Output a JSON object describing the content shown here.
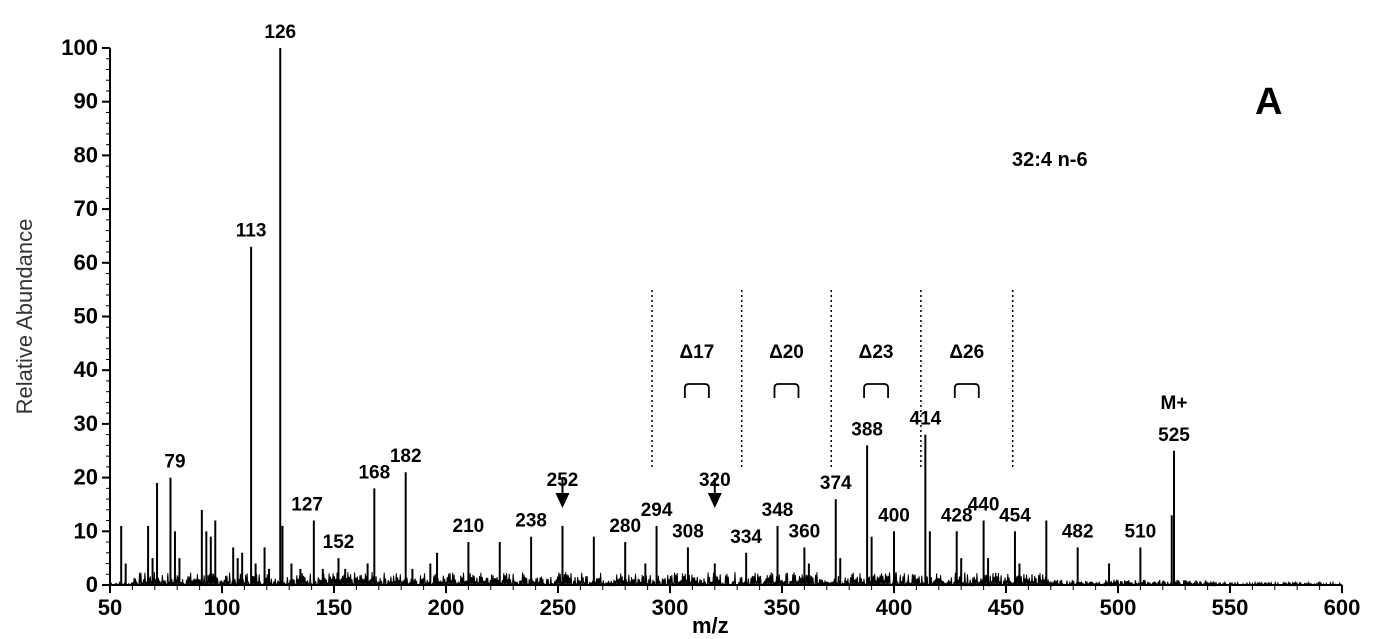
{
  "chart_data": {
    "type": "bar",
    "title": "",
    "xlabel": "m/z",
    "ylabel": "Relative Abundance",
    "xlim": [
      50,
      600
    ],
    "ylim": [
      0,
      100
    ],
    "x_ticks": [
      "50",
      "100",
      "150",
      "200",
      "250",
      "300",
      "350",
      "400",
      "450",
      "500",
      "550",
      "600"
    ],
    "y_ticks": [
      "0",
      "10",
      "20",
      "30",
      "40",
      "50",
      "60",
      "70",
      "80",
      "90",
      "100"
    ],
    "panel_label": "A",
    "compound": "32:4 n-6",
    "molecular_ion_label": "M+",
    "peaks": [
      {
        "x": 55,
        "y": 11
      },
      {
        "x": 57,
        "y": 4
      },
      {
        "x": 67,
        "y": 11
      },
      {
        "x": 69,
        "y": 5
      },
      {
        "x": 71,
        "y": 19
      },
      {
        "x": 77,
        "y": 20
      },
      {
        "x": 79,
        "y": 10
      },
      {
        "x": 81,
        "y": 5
      },
      {
        "x": 91,
        "y": 14
      },
      {
        "x": 93,
        "y": 10
      },
      {
        "x": 95,
        "y": 9
      },
      {
        "x": 97,
        "y": 12
      },
      {
        "x": 105,
        "y": 7
      },
      {
        "x": 107,
        "y": 5
      },
      {
        "x": 109,
        "y": 6
      },
      {
        "x": 113,
        "y": 63
      },
      {
        "x": 115,
        "y": 4
      },
      {
        "x": 119,
        "y": 7
      },
      {
        "x": 121,
        "y": 3
      },
      {
        "x": 126,
        "y": 100
      },
      {
        "x": 127,
        "y": 11
      },
      {
        "x": 131,
        "y": 4
      },
      {
        "x": 135,
        "y": 3
      },
      {
        "x": 141,
        "y": 12
      },
      {
        "x": 145,
        "y": 3
      },
      {
        "x": 152,
        "y": 5
      },
      {
        "x": 155,
        "y": 3
      },
      {
        "x": 165,
        "y": 4
      },
      {
        "x": 168,
        "y": 18
      },
      {
        "x": 182,
        "y": 21
      },
      {
        "x": 185,
        "y": 3
      },
      {
        "x": 193,
        "y": 4
      },
      {
        "x": 196,
        "y": 6
      },
      {
        "x": 210,
        "y": 8
      },
      {
        "x": 224,
        "y": 8
      },
      {
        "x": 238,
        "y": 9
      },
      {
        "x": 252,
        "y": 11
      },
      {
        "x": 266,
        "y": 9
      },
      {
        "x": 280,
        "y": 8
      },
      {
        "x": 289,
        "y": 4
      },
      {
        "x": 294,
        "y": 11
      },
      {
        "x": 308,
        "y": 7
      },
      {
        "x": 320,
        "y": 4
      },
      {
        "x": 334,
        "y": 6
      },
      {
        "x": 348,
        "y": 11
      },
      {
        "x": 360,
        "y": 7
      },
      {
        "x": 362,
        "y": 4
      },
      {
        "x": 374,
        "y": 16
      },
      {
        "x": 376,
        "y": 5
      },
      {
        "x": 388,
        "y": 26
      },
      {
        "x": 390,
        "y": 9
      },
      {
        "x": 400,
        "y": 10
      },
      {
        "x": 414,
        "y": 28
      },
      {
        "x": 416,
        "y": 10
      },
      {
        "x": 428,
        "y": 10
      },
      {
        "x": 430,
        "y": 5
      },
      {
        "x": 440,
        "y": 12
      },
      {
        "x": 442,
        "y": 5
      },
      {
        "x": 454,
        "y": 10
      },
      {
        "x": 456,
        "y": 4
      },
      {
        "x": 468,
        "y": 12
      },
      {
        "x": 482,
        "y": 7
      },
      {
        "x": 496,
        "y": 4
      },
      {
        "x": 510,
        "y": 7
      },
      {
        "x": 524,
        "y": 13
      },
      {
        "x": 525,
        "y": 25
      }
    ],
    "peak_labels": [
      {
        "text": "79",
        "x": 79,
        "y": 20
      },
      {
        "text": "113",
        "x": 113,
        "y": 63
      },
      {
        "text": "126",
        "x": 126,
        "y": 100
      },
      {
        "text": "127",
        "x": 138,
        "y": 12
      },
      {
        "text": "152",
        "x": 152,
        "y": 5
      },
      {
        "text": "168",
        "x": 168,
        "y": 18
      },
      {
        "text": "182",
        "x": 182,
        "y": 21
      },
      {
        "text": "210",
        "x": 210,
        "y": 8
      },
      {
        "text": "238",
        "x": 238,
        "y": 9
      },
      {
        "text": "252",
        "x": 252,
        "y": 11
      },
      {
        "text": "280",
        "x": 280,
        "y": 8
      },
      {
        "text": "294",
        "x": 294,
        "y": 11
      },
      {
        "text": "308",
        "x": 308,
        "y": 7
      },
      {
        "text": "320",
        "x": 320,
        "y": 11
      },
      {
        "text": "334",
        "x": 334,
        "y": 6
      },
      {
        "text": "348",
        "x": 348,
        "y": 11
      },
      {
        "text": "360",
        "x": 360,
        "y": 7
      },
      {
        "text": "374",
        "x": 374,
        "y": 16
      },
      {
        "text": "388",
        "x": 388,
        "y": 26
      },
      {
        "text": "400",
        "x": 400,
        "y": 10
      },
      {
        "text": "414",
        "x": 414,
        "y": 28
      },
      {
        "text": "428",
        "x": 428,
        "y": 10
      },
      {
        "text": "440",
        "x": 440,
        "y": 12
      },
      {
        "text": "454",
        "x": 454,
        "y": 10
      },
      {
        "text": "482",
        "x": 482,
        "y": 7
      },
      {
        "text": "510",
        "x": 510,
        "y": 7
      },
      {
        "text": "525",
        "x": 525,
        "y": 25
      }
    ],
    "arrows_at": [
      252,
      320
    ],
    "delta_regions": [
      {
        "label": "Δ17",
        "x_from": 292,
        "x_to": 332
      },
      {
        "label": "Δ20",
        "x_from": 332,
        "x_to": 372
      },
      {
        "label": "Δ23",
        "x_from": 372,
        "x_to": 412
      },
      {
        "label": "Δ26",
        "x_from": 412,
        "x_to": 453
      }
    ]
  }
}
